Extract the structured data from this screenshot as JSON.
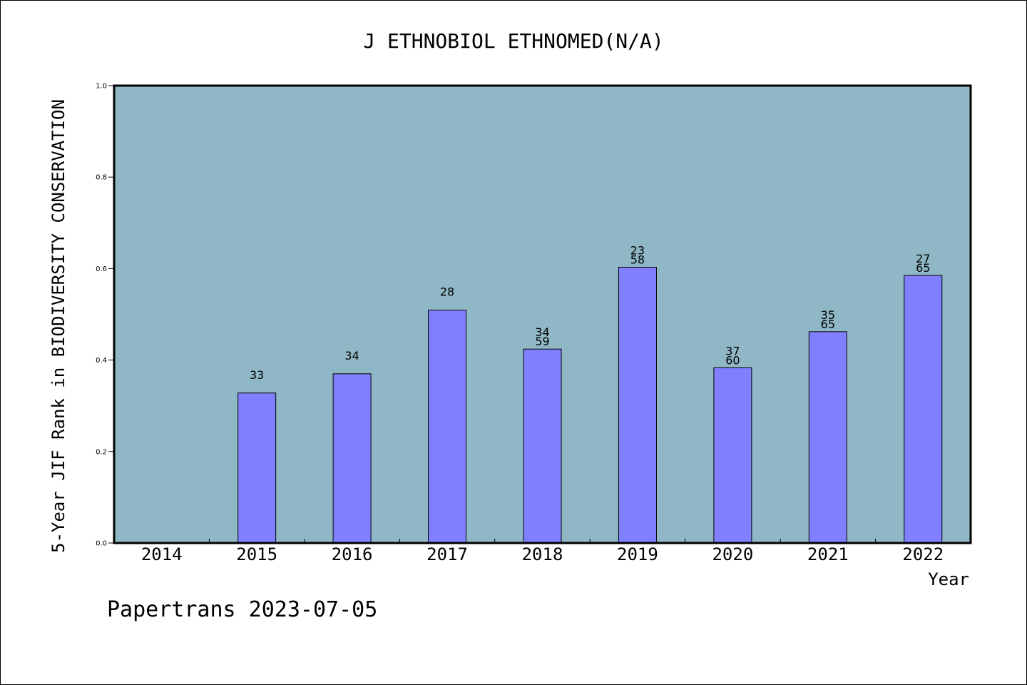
{
  "chart_data": {
    "type": "bar",
    "title": "J ETHNOBIOL ETHNOMED(N/A)",
    "xlabel": "Year",
    "ylabel": "5-Year JIF Rank in BIODIVERSITY CONSERVATION",
    "footer": "Papertrans 2023-07-05",
    "categories": [
      "2014",
      "2015",
      "2016",
      "2017",
      "2018",
      "2019",
      "2020",
      "2021",
      "2022"
    ],
    "values": [
      null,
      0.328,
      0.37,
      0.509,
      0.424,
      0.603,
      0.383,
      0.462,
      0.585
    ],
    "labels": [
      [],
      [
        "33"
      ],
      [
        "34"
      ],
      [
        "28"
      ],
      [
        "34",
        "59"
      ],
      [
        "23",
        "58"
      ],
      [
        "37",
        "60"
      ],
      [
        "35",
        "65"
      ],
      [
        "27",
        "65"
      ]
    ],
    "yticks": [
      "0.0",
      "0.2",
      "0.4",
      "0.6",
      "0.8",
      "1.0"
    ],
    "ylim": [
      0,
      1.0
    ],
    "grid": false,
    "colors": {
      "plot_background": "#8fb7c6",
      "bar_fill": "#8080ff",
      "bar_stroke": "#000000"
    }
  }
}
